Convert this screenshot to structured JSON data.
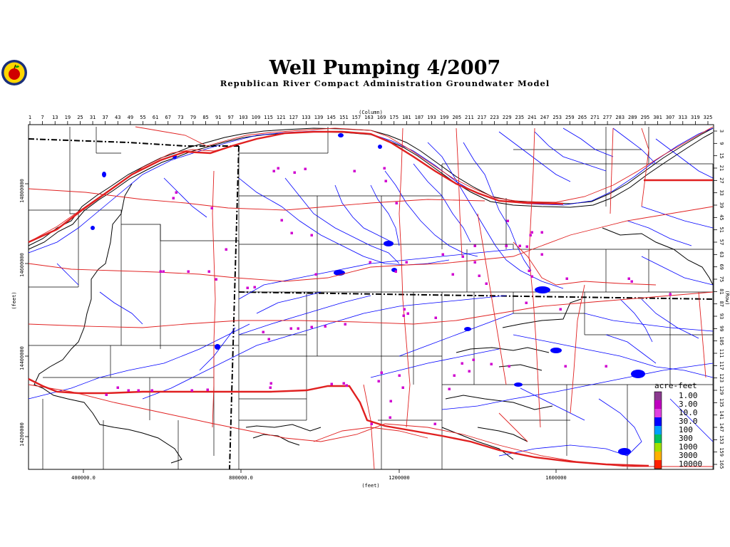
{
  "title": "Well Pumping 4/2007",
  "subtitle": "Republican River Compact Administration Groundwater Model",
  "logo_name": "rrca-logo",
  "axes": {
    "top_label": "(Column)",
    "bottom_label": "(feet)",
    "left_label": "(feet)",
    "right_label": "(Row)",
    "column_ticks": [
      "1",
      "7",
      "13",
      "19",
      "25",
      "31",
      "37",
      "43",
      "49",
      "55",
      "61",
      "67",
      "73",
      "79",
      "85",
      "91",
      "97",
      "103",
      "109",
      "115",
      "121",
      "127",
      "133",
      "139",
      "145",
      "151",
      "157",
      "163",
      "169",
      "175",
      "181",
      "187",
      "193",
      "199",
      "205",
      "211",
      "217",
      "223",
      "229",
      "235",
      "241",
      "247",
      "253",
      "259",
      "265",
      "271",
      "277",
      "283",
      "289",
      "295",
      "301",
      "307",
      "313",
      "319",
      "325"
    ],
    "row_ticks": [
      "3",
      "9",
      "15",
      "21",
      "27",
      "33",
      "39",
      "45",
      "51",
      "57",
      "63",
      "69",
      "75",
      "81",
      "87",
      "93",
      "99",
      "105",
      "111",
      "117",
      "123",
      "129",
      "135",
      "141",
      "147",
      "153",
      "159",
      "165"
    ],
    "x_ticks": [
      "400000.0",
      "800000.0",
      "1200000",
      "1600000"
    ],
    "y_ticks": [
      "14800000",
      "14600000",
      "14400000",
      "14200000"
    ]
  },
  "legend": {
    "title": "acre-feet",
    "entries": [
      {
        "label": "1.00",
        "color": "#8b3a8f"
      },
      {
        "label": "3.00",
        "color": "#c000c0"
      },
      {
        "label": "10.0",
        "color": "#e040e0"
      },
      {
        "label": "30.0",
        "color": "#0000ff"
      },
      {
        "label": "100",
        "color": "#00a0ff"
      },
      {
        "label": "300",
        "color": "#00c060"
      },
      {
        "label": "1000",
        "color": "#a0e000"
      },
      {
        "label": "3000",
        "color": "#ffb000"
      },
      {
        "label": "10000",
        "color": "#ff2000"
      }
    ]
  },
  "colors": {
    "roads": "#e02020",
    "streams": "#0000ff",
    "boundaries": "#000000",
    "pumping": "#d000d0"
  }
}
